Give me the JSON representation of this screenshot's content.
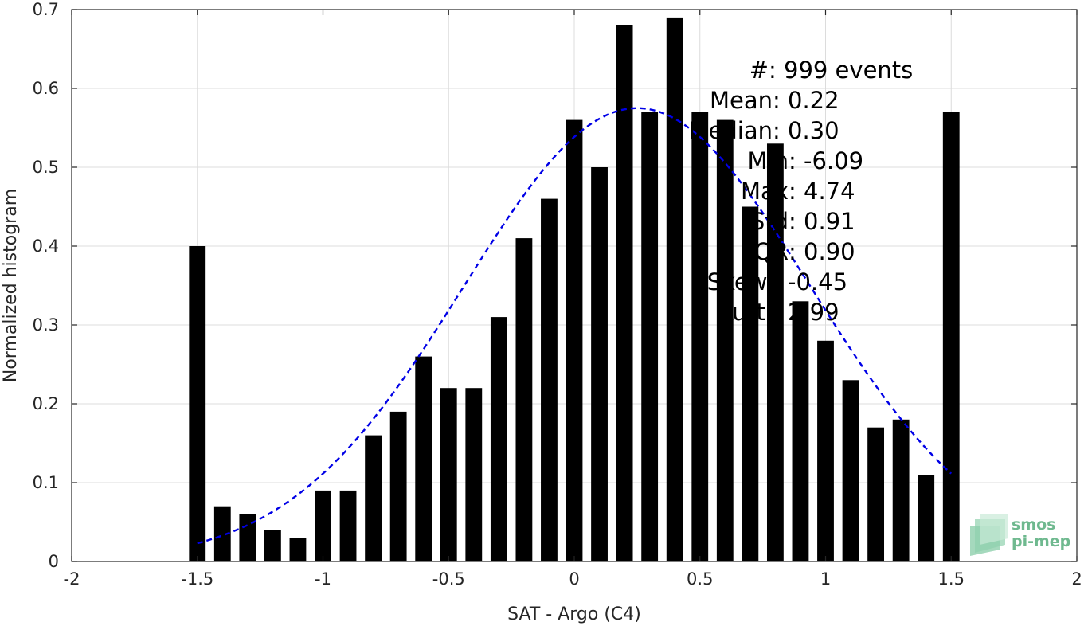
{
  "chart_data": {
    "type": "bar",
    "xlabel": "SAT - Argo (C4)",
    "ylabel": "Normalized histogram",
    "xlim": [
      -2,
      2
    ],
    "ylim": [
      0,
      0.7
    ],
    "xticks": [
      -2,
      -1.5,
      -1,
      -0.5,
      0,
      0.5,
      1,
      1.5,
      2
    ],
    "xtick_labels": [
      "-2",
      "-1.5",
      "-1",
      "-0.5",
      "0",
      "0.5",
      "1",
      "1.5",
      "2"
    ],
    "yticks": [
      0,
      0.1,
      0.2,
      0.3,
      0.4,
      0.5,
      0.6,
      0.7
    ],
    "ytick_labels": [
      "0",
      "0.1",
      "0.2",
      "0.3",
      "0.4",
      "0.5",
      "0.6",
      "0.7"
    ],
    "grid": true,
    "bin_width": 0.1,
    "x": [
      -1.5,
      -1.4,
      -1.3,
      -1.2,
      -1.1,
      -1.0,
      -0.9,
      -0.8,
      -0.7,
      -0.6,
      -0.5,
      -0.4,
      -0.3,
      -0.2,
      -0.1,
      0.0,
      0.1,
      0.2,
      0.3,
      0.4,
      0.5,
      0.6,
      0.7,
      0.8,
      0.9,
      1.0,
      1.1,
      1.2,
      1.3,
      1.4,
      1.5
    ],
    "values": [
      0.4,
      0.07,
      0.06,
      0.04,
      0.03,
      0.09,
      0.09,
      0.16,
      0.19,
      0.26,
      0.22,
      0.22,
      0.31,
      0.41,
      0.46,
      0.56,
      0.5,
      0.68,
      0.57,
      0.69,
      0.57,
      0.56,
      0.45,
      0.53,
      0.33,
      0.28,
      0.23,
      0.17,
      0.18,
      0.11,
      0.57
    ],
    "fit_curve": {
      "style": "dashed",
      "color": "#0000e6",
      "x_range": [
        -1.5,
        1.5
      ],
      "mean": 0.25,
      "std": 0.69,
      "peak": 0.575
    },
    "annotations": [
      {
        "label": "#",
        "value": " : 999 events"
      },
      {
        "label": "Mean",
        "value": " : 0.22"
      },
      {
        "label": "Median",
        "value": " : 0.30"
      },
      {
        "label": "Min",
        "value": " : -6.09"
      },
      {
        "label": "Max",
        "value": " : 4.74"
      },
      {
        "label": "Std",
        "value": " : 0.91"
      },
      {
        "label": "IQR",
        "value": " : 0.90"
      },
      {
        "label": "Skew.",
        "value": " : -0.45"
      },
      {
        "label": "Kurt.",
        "value": " : 2.99"
      }
    ]
  },
  "logo": {
    "line1": "smos",
    "line2": "pi-mep"
  }
}
